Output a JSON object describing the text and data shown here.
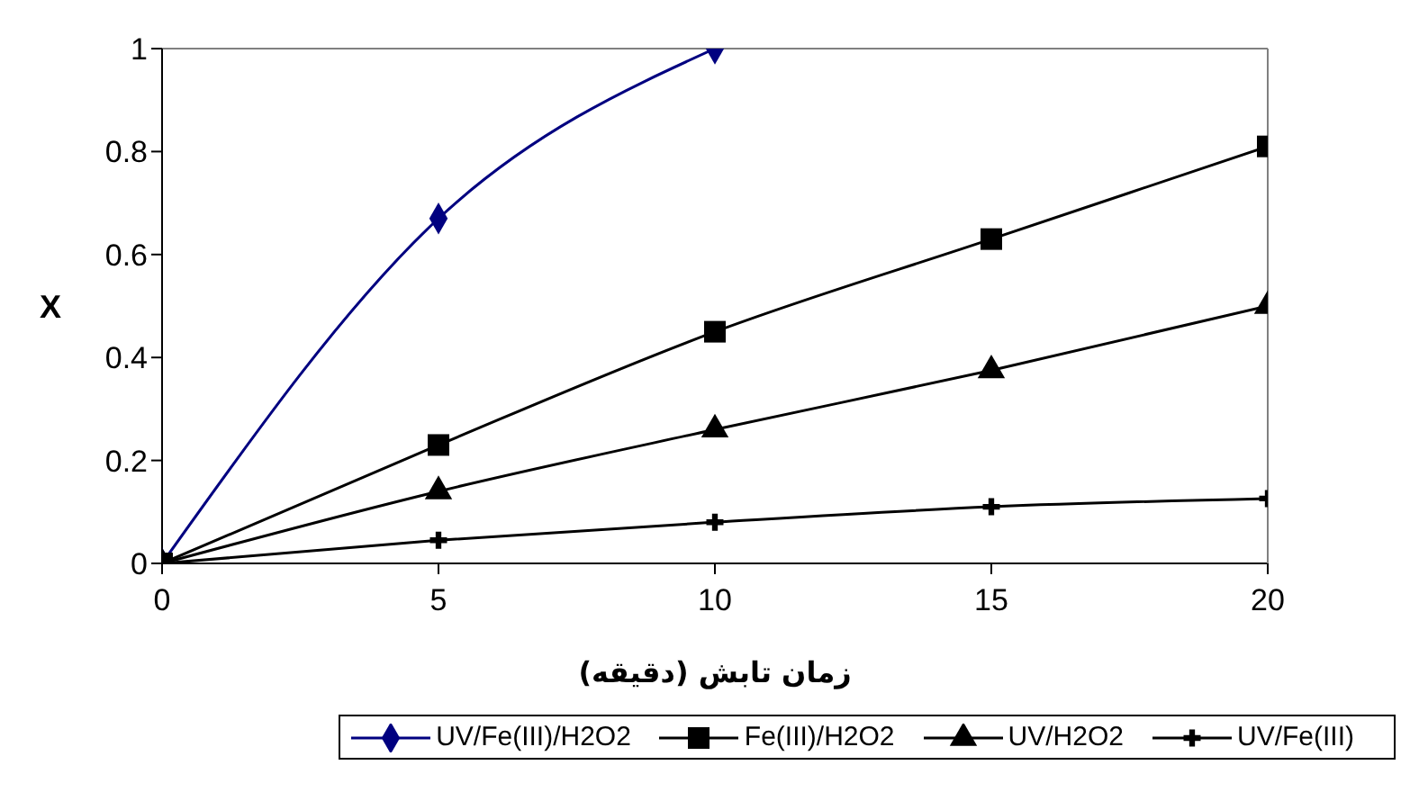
{
  "chart_data": {
    "type": "line",
    "xlabel": "زمان تابش (دقیقه)",
    "ylabel": "X",
    "xlim": [
      0,
      20
    ],
    "xticks": [
      0,
      5,
      10,
      15,
      20
    ],
    "ylim": [
      0,
      1
    ],
    "yticks": [
      0,
      0.2,
      0.4,
      0.6,
      0.8,
      1
    ],
    "legend": "bottom",
    "line_style": "solid",
    "series": [
      {
        "name": "UV/Fe(III)/H2O2",
        "color": "#000080",
        "marker": "diamond",
        "x": [
          0,
          5,
          10
        ],
        "values": [
          0,
          0.67,
          1
        ]
      },
      {
        "name": "Fe(III)/H2O2",
        "color": "#000000",
        "marker": "square",
        "x": [
          0,
          5,
          10,
          15,
          20
        ],
        "values": [
          0,
          0.23,
          0.45,
          0.63,
          0.81
        ]
      },
      {
        "name": "UV/H2O2",
        "color": "#000000",
        "marker": "triangle",
        "x": [
          0,
          5,
          10,
          15,
          20
        ],
        "values": [
          0,
          0.14,
          0.26,
          0.375,
          0.5
        ]
      },
      {
        "name": "UV/Fe(III)",
        "color": "#000000",
        "marker": "cross",
        "x": [
          0,
          5,
          10,
          15,
          20
        ],
        "values": [
          0,
          0.045,
          0.08,
          0.11,
          0.126
        ]
      }
    ]
  }
}
